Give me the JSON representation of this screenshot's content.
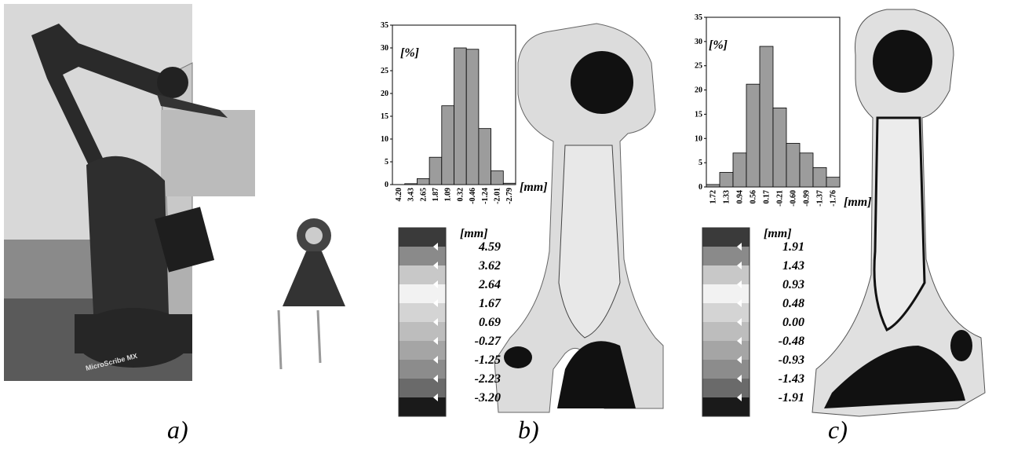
{
  "chart_data": [
    {
      "type": "bar",
      "y_label": "[%]",
      "x_label": "[mm]",
      "categories": [
        "4.20",
        "3.43",
        "2.65",
        "1.87",
        "1.09",
        "0.32",
        "-0.46",
        "-1.24",
        "-2.01",
        "-2.79"
      ],
      "values": [
        0,
        0.2,
        1.3,
        6,
        17.3,
        30,
        29.7,
        12.3,
        3,
        0.3
      ],
      "color": "#9c9c9c",
      "ylim": [
        0,
        35
      ],
      "yticks": [
        0,
        5,
        10,
        15,
        20,
        25,
        30,
        35
      ]
    },
    {
      "type": "bar",
      "y_label": "[%]",
      "x_label": "[mm]",
      "categories": [
        "1.72",
        "1.33",
        "0.94",
        "0.56",
        "0.17",
        "-0.21",
        "-0.60",
        "-0.99",
        "-1.37",
        "-1.76"
      ],
      "values": [
        0.5,
        3,
        7,
        21.2,
        29,
        16.3,
        9,
        7,
        4,
        2
      ],
      "color": "#9c9c9c",
      "ylim": [
        0,
        35
      ],
      "yticks": [
        0,
        5,
        10,
        15,
        20,
        25,
        30,
        35
      ]
    }
  ],
  "scales": [
    {
      "unit": "[mm]",
      "labels": [
        "4.59",
        "3.62",
        "2.64",
        "1.67",
        "0.69",
        "-0.27",
        "-1.25",
        "-2.23",
        "-3.20"
      ]
    },
    {
      "unit": "[mm]",
      "labels": [
        "1.91",
        "1.43",
        "0.93",
        "0.48",
        "0.00",
        "-0.48",
        "-0.93",
        "-1.43",
        "-1.91"
      ]
    }
  ],
  "photo": {
    "brand": "MicroScribe MX"
  },
  "captions": [
    "a)",
    "b)",
    "c)"
  ]
}
